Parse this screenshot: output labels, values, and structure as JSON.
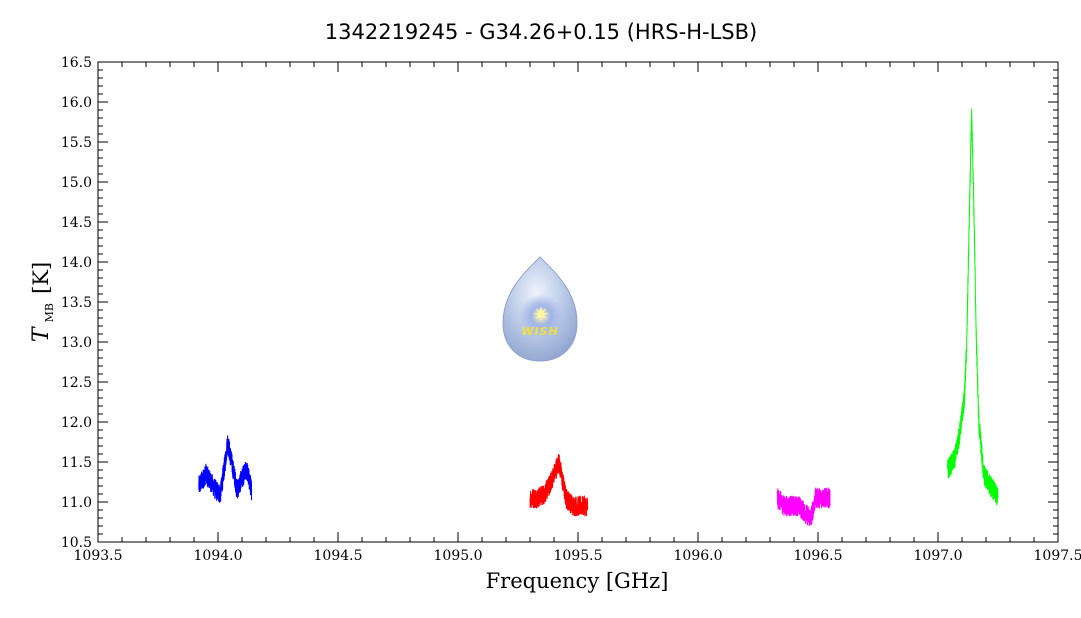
{
  "chart_data": {
    "type": "line",
    "title": "1342219245 - G34.26+0.15 (HRS-H-LSB)",
    "xlabel": "Frequency [GHz]",
    "ylabel": {
      "symbol": "T",
      "subscript": "MB",
      "unit": "[K]"
    },
    "xlim": [
      1093.5,
      1097.5
    ],
    "ylim": [
      10.5,
      16.5
    ],
    "x_ticks": [
      "1093.5",
      "1094.0",
      "1094.5",
      "1095.0",
      "1095.5",
      "1096.0",
      "1096.5",
      "1097.0",
      "1097.5"
    ],
    "y_ticks": [
      "10.5",
      "11.0",
      "11.5",
      "12.0",
      "12.5",
      "13.0",
      "13.5",
      "14.0",
      "14.5",
      "15.0",
      "15.5",
      "16.0",
      "16.5"
    ],
    "grid": false,
    "legend": "none",
    "series": [
      {
        "color": "#0000ff",
        "x": [
          1093.92,
          1093.95,
          1093.97,
          1093.99,
          1094.01,
          1094.03,
          1094.04,
          1094.06,
          1094.08,
          1094.1,
          1094.12,
          1094.14
        ],
        "y": [
          11.2,
          11.35,
          11.25,
          11.15,
          11.1,
          11.5,
          11.75,
          11.45,
          11.15,
          11.3,
          11.4,
          11.15
        ]
      },
      {
        "color": "#ff0000",
        "x": [
          1095.3,
          1095.33,
          1095.36,
          1095.38,
          1095.4,
          1095.42,
          1095.45,
          1095.48,
          1095.51,
          1095.54
        ],
        "y": [
          11.05,
          11.05,
          11.1,
          11.2,
          11.35,
          11.5,
          11.05,
          10.95,
          10.95,
          10.95
        ]
      },
      {
        "color": "#ff00ff",
        "x": [
          1096.33,
          1096.36,
          1096.39,
          1096.42,
          1096.45,
          1096.47,
          1096.49,
          1096.52,
          1096.55
        ],
        "y": [
          11.05,
          10.95,
          10.95,
          10.95,
          10.85,
          10.8,
          11.05,
          11.05,
          11.05
        ]
      },
      {
        "color": "#00ff00",
        "x": [
          1097.04,
          1097.07,
          1097.09,
          1097.11,
          1097.12,
          1097.13,
          1097.14,
          1097.15,
          1097.16,
          1097.17,
          1097.19,
          1097.22,
          1097.25
        ],
        "y": [
          11.4,
          11.55,
          11.85,
          12.3,
          13.0,
          14.5,
          15.85,
          14.6,
          13.0,
          12.0,
          11.35,
          11.2,
          11.05
        ]
      }
    ]
  },
  "logo": {
    "text": "WISH"
  }
}
